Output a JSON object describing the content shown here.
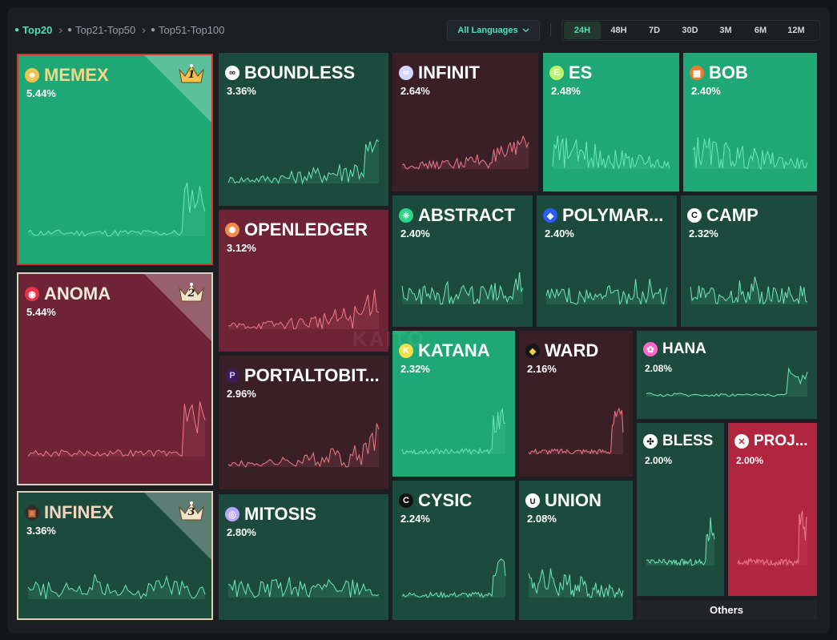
{
  "nav": {
    "tabs": [
      {
        "label": "Top20",
        "active": true
      },
      {
        "label": "Top21-Top50",
        "active": false
      },
      {
        "label": "Top51-Top100",
        "active": false
      }
    ],
    "language": "All Languages",
    "ranges": [
      {
        "label": "24H",
        "active": true
      },
      {
        "label": "48H",
        "active": false
      },
      {
        "label": "7D",
        "active": false
      },
      {
        "label": "30D",
        "active": false
      },
      {
        "label": "3M",
        "active": false
      },
      {
        "label": "6M",
        "active": false
      },
      {
        "label": "12M",
        "active": false
      }
    ]
  },
  "watermark": "KAITO",
  "others_label": "Others",
  "colors": {
    "green_bright": "#1fa876",
    "green_dark": "#1c4b3d",
    "red_bright": "#b0263f",
    "red_dark": "#6e2434",
    "maroon_dark": "#3a1f27",
    "accent": "#4fe0b5",
    "rank_gold": "#f2c14e"
  },
  "tiles": [
    {
      "name": "MEMEX",
      "pct": "5.44%",
      "trend": "up",
      "icon": "frog-icon",
      "rank": "1"
    },
    {
      "name": "BOUNDLESS",
      "pct": "3.36%",
      "trend": "up",
      "icon": "loop-icon"
    },
    {
      "name": "INFINIT",
      "pct": "2.64%",
      "trend": "down",
      "icon": "infinity-icon"
    },
    {
      "name": "ES",
      "pct": "2.48%",
      "trend": "up",
      "icon": "e-icon"
    },
    {
      "name": "BOB",
      "pct": "2.40%",
      "trend": "up",
      "icon": "blocks-icon"
    },
    {
      "name": "ANOMA",
      "pct": "5.44%",
      "trend": "down",
      "icon": "target-icon",
      "rank": "2"
    },
    {
      "name": "OPENLEDGER",
      "pct": "3.12%",
      "trend": "down",
      "icon": "octopus-icon"
    },
    {
      "name": "ABSTRACT",
      "pct": "2.40%",
      "trend": "up",
      "icon": "abstract-icon"
    },
    {
      "name": "POLYMAR...",
      "pct": "2.40%",
      "trend": "up",
      "icon": "cube-icon"
    },
    {
      "name": "CAMP",
      "pct": "2.32%",
      "trend": "up",
      "icon": "c-icon"
    },
    {
      "name": "PORTALTOBIT...",
      "pct": "2.96%",
      "trend": "down",
      "icon": "p-icon"
    },
    {
      "name": "KATANA",
      "pct": "2.32%",
      "trend": "up",
      "icon": "k-icon"
    },
    {
      "name": "WARD",
      "pct": "2.16%",
      "trend": "down",
      "icon": "shield-icon"
    },
    {
      "name": "HANA",
      "pct": "2.08%",
      "trend": "up",
      "icon": "butterfly-icon"
    },
    {
      "name": "INFINEX",
      "pct": "3.36%",
      "trend": "up",
      "icon": "infinex-icon",
      "rank": "3"
    },
    {
      "name": "BLESS",
      "pct": "2.00%",
      "trend": "up",
      "icon": "bless-icon"
    },
    {
      "name": "PROJ...",
      "pct": "2.00%",
      "trend": "down",
      "icon": "x-icon"
    },
    {
      "name": "MITOSIS",
      "pct": "2.80%",
      "trend": "up",
      "icon": "mitosis-icon"
    },
    {
      "name": "CYSIC",
      "pct": "2.24%",
      "trend": "up",
      "icon": "cysic-icon"
    },
    {
      "name": "UNION",
      "pct": "2.08%",
      "trend": "up",
      "icon": "union-icon"
    }
  ]
}
